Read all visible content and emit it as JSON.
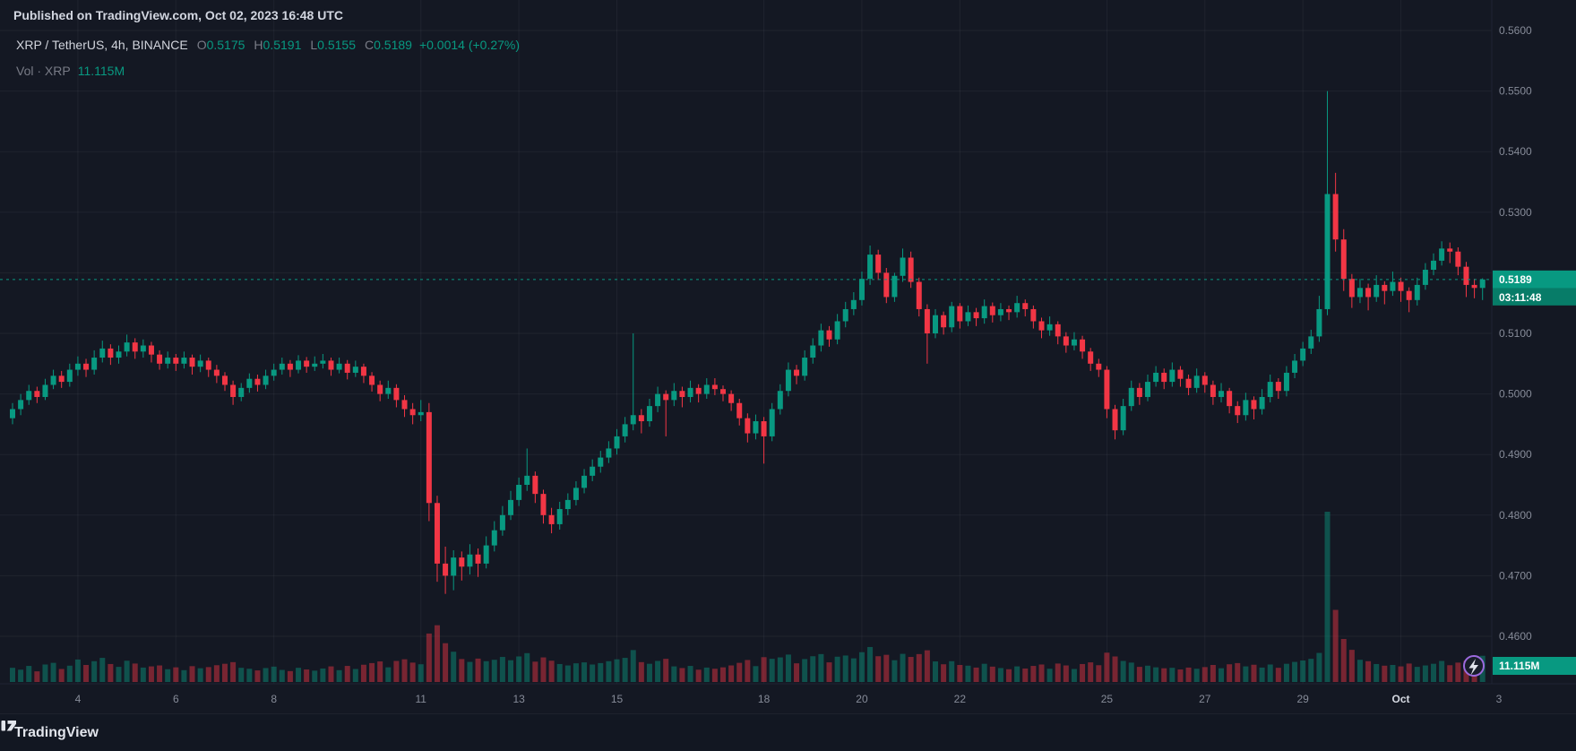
{
  "header": {
    "published_line": "Published on TradingView.com, Oct 02, 2023 16:48 UTC"
  },
  "legend": {
    "symbol_title": "XRP / TetherUS, 4h, BINANCE",
    "ohlc": {
      "o_label": "O",
      "o": "0.5175",
      "h_label": "H",
      "h": "0.5191",
      "l_label": "L",
      "l": "0.5155",
      "c_label": "C",
      "c": "0.5189",
      "change": "+0.0014 (+0.27%)"
    },
    "volume_row": {
      "label": "Vol · XRP",
      "value": "11.115M"
    }
  },
  "footer": {
    "brand": "TradingView"
  },
  "colors": {
    "background": "#141823",
    "up": "#089981",
    "down": "#f23645",
    "volume_up": "rgba(8,153,129,0.45)",
    "volume_down": "rgba(242,54,69,0.45)",
    "accent": "#089981",
    "countdown_bg": "#077c68",
    "axis_text": "#868b98",
    "grid": "rgba(134,139,152,0.10)",
    "separator": "#1f2433",
    "flash_ring": "#9c6ade"
  },
  "chart_data": {
    "type": "candlestick",
    "symbol": "XRP / TetherUS",
    "interval": "4h",
    "exchange": "BINANCE",
    "ohlc": {
      "open": 0.5175,
      "high": 0.5191,
      "low": 0.5155,
      "close": 0.5189,
      "change": "+0.0014",
      "change_pct": "+0.27%"
    },
    "volume": "11.115M",
    "current": {
      "price": "0.5189",
      "price_value": 0.5189,
      "countdown": "03:11:48"
    },
    "price_axis": {
      "min": 0.46,
      "max": 0.56,
      "tick": 0.01,
      "labels": [
        "0.5600",
        "0.5500",
        "0.5400",
        "0.5300",
        "0.5100",
        "0.5000",
        "0.4900",
        "0.4800",
        "0.4700",
        "0.4600"
      ]
    },
    "time_axis": {
      "labels": [
        {
          "label": "4",
          "i": 8
        },
        {
          "label": "6",
          "i": 20
        },
        {
          "label": "8",
          "i": 32
        },
        {
          "label": "11",
          "i": 50
        },
        {
          "label": "13",
          "i": 62
        },
        {
          "label": "15",
          "i": 74
        },
        {
          "label": "18",
          "i": 92
        },
        {
          "label": "20",
          "i": 104
        },
        {
          "label": "22",
          "i": 116
        },
        {
          "label": "25",
          "i": 134
        },
        {
          "label": "27",
          "i": 146
        },
        {
          "label": "29",
          "i": 158
        },
        {
          "label": "Oct",
          "i": 170,
          "emph": true
        },
        {
          "label": "3",
          "i": 182
        }
      ]
    },
    "candles": [
      [
        0.496,
        0.4985,
        0.495,
        0.4975,
        6.0
      ],
      [
        0.4975,
        0.5,
        0.4965,
        0.499,
        5.2
      ],
      [
        0.499,
        0.5015,
        0.4982,
        0.5005,
        6.8
      ],
      [
        0.5005,
        0.5012,
        0.4985,
        0.4995,
        4.5
      ],
      [
        0.4995,
        0.5025,
        0.499,
        0.5015,
        7.4
      ],
      [
        0.5015,
        0.504,
        0.5008,
        0.503,
        8.1
      ],
      [
        0.503,
        0.5038,
        0.501,
        0.502,
        5.5
      ],
      [
        0.502,
        0.505,
        0.5012,
        0.504,
        6.9
      ],
      [
        0.504,
        0.5062,
        0.503,
        0.505,
        9.5
      ],
      [
        0.505,
        0.5058,
        0.5028,
        0.504,
        7.2
      ],
      [
        0.504,
        0.5072,
        0.5032,
        0.506,
        8.8
      ],
      [
        0.506,
        0.5088,
        0.5052,
        0.5075,
        10.2
      ],
      [
        0.5075,
        0.5082,
        0.5048,
        0.506,
        7.6
      ],
      [
        0.506,
        0.508,
        0.505,
        0.507,
        6.4
      ],
      [
        0.507,
        0.5098,
        0.5062,
        0.5085,
        9.0
      ],
      [
        0.5085,
        0.5092,
        0.5058,
        0.507,
        7.8
      ],
      [
        0.507,
        0.509,
        0.506,
        0.508,
        6.1
      ],
      [
        0.508,
        0.5086,
        0.5052,
        0.5065,
        6.6
      ],
      [
        0.5065,
        0.5072,
        0.504,
        0.505,
        7.0
      ],
      [
        0.505,
        0.507,
        0.5042,
        0.506,
        5.4
      ],
      [
        0.506,
        0.5066,
        0.5038,
        0.505,
        6.2
      ],
      [
        0.505,
        0.507,
        0.5042,
        0.506,
        5.0
      ],
      [
        0.506,
        0.5065,
        0.5032,
        0.5045,
        6.7
      ],
      [
        0.5045,
        0.5065,
        0.5036,
        0.5055,
        5.8
      ],
      [
        0.5055,
        0.506,
        0.5028,
        0.504,
        6.3
      ],
      [
        0.504,
        0.5048,
        0.5018,
        0.503,
        7.1
      ],
      [
        0.503,
        0.5036,
        0.5005,
        0.5015,
        7.7
      ],
      [
        0.5015,
        0.5022,
        0.4982,
        0.4995,
        8.4
      ],
      [
        0.4995,
        0.5018,
        0.4988,
        0.501,
        6.0
      ],
      [
        0.501,
        0.5034,
        0.5002,
        0.5025,
        5.6
      ],
      [
        0.5025,
        0.5032,
        0.5004,
        0.5015,
        4.9
      ],
      [
        0.5015,
        0.504,
        0.5008,
        0.503,
        5.9
      ],
      [
        0.503,
        0.505,
        0.5022,
        0.504,
        6.5
      ],
      [
        0.504,
        0.506,
        0.5032,
        0.505,
        5.1
      ],
      [
        0.505,
        0.5056,
        0.5028,
        0.504,
        4.6
      ],
      [
        0.504,
        0.5064,
        0.5034,
        0.5055,
        6.0
      ],
      [
        0.5055,
        0.5061,
        0.5035,
        0.5045,
        5.3
      ],
      [
        0.5045,
        0.5062,
        0.5038,
        0.505,
        4.8
      ],
      [
        0.505,
        0.5066,
        0.5042,
        0.5055,
        5.7
      ],
      [
        0.5055,
        0.506,
        0.503,
        0.504,
        6.6
      ],
      [
        0.504,
        0.506,
        0.5034,
        0.505,
        5.0
      ],
      [
        0.505,
        0.5056,
        0.5024,
        0.5035,
        6.8
      ],
      [
        0.5035,
        0.5055,
        0.5028,
        0.5045,
        5.5
      ],
      [
        0.5045,
        0.505,
        0.5018,
        0.503,
        7.3
      ],
      [
        0.503,
        0.5036,
        0.5004,
        0.5015,
        8.0
      ],
      [
        0.5015,
        0.5022,
        0.4988,
        0.5,
        8.7
      ],
      [
        0.5,
        0.5022,
        0.4992,
        0.501,
        6.2
      ],
      [
        0.501,
        0.5016,
        0.4978,
        0.499,
        8.9
      ],
      [
        0.499,
        0.4998,
        0.4962,
        0.4975,
        9.6
      ],
      [
        0.4975,
        0.4985,
        0.495,
        0.4965,
        8.2
      ],
      [
        0.4965,
        0.499,
        0.4955,
        0.497,
        7.5
      ],
      [
        0.497,
        0.4985,
        0.479,
        0.482,
        20.5
      ],
      [
        0.482,
        0.4832,
        0.469,
        0.472,
        24.0
      ],
      [
        0.472,
        0.4748,
        0.467,
        0.47,
        16.4
      ],
      [
        0.47,
        0.4742,
        0.4676,
        0.473,
        12.8
      ],
      [
        0.473,
        0.474,
        0.4692,
        0.4715,
        9.7
      ],
      [
        0.4715,
        0.4752,
        0.4702,
        0.4735,
        8.5
      ],
      [
        0.4735,
        0.4745,
        0.4698,
        0.472,
        9.9
      ],
      [
        0.472,
        0.4765,
        0.4712,
        0.475,
        8.8
      ],
      [
        0.475,
        0.479,
        0.474,
        0.4775,
        9.4
      ],
      [
        0.4775,
        0.4815,
        0.4766,
        0.48,
        10.6
      ],
      [
        0.48,
        0.484,
        0.4792,
        0.4825,
        9.2
      ],
      [
        0.4825,
        0.4862,
        0.4815,
        0.485,
        10.8
      ],
      [
        0.485,
        0.491,
        0.484,
        0.4865,
        12.2
      ],
      [
        0.4865,
        0.4872,
        0.482,
        0.4835,
        8.6
      ],
      [
        0.4835,
        0.4842,
        0.4786,
        0.48,
        10.4
      ],
      [
        0.48,
        0.4812,
        0.477,
        0.4785,
        9.0
      ],
      [
        0.4785,
        0.4822,
        0.4776,
        0.481,
        7.6
      ],
      [
        0.481,
        0.4836,
        0.48,
        0.4825,
        7.0
      ],
      [
        0.4825,
        0.4856,
        0.4816,
        0.4845,
        7.9
      ],
      [
        0.4845,
        0.4876,
        0.4836,
        0.4865,
        8.3
      ],
      [
        0.4865,
        0.4892,
        0.4856,
        0.488,
        7.4
      ],
      [
        0.488,
        0.4906,
        0.487,
        0.4895,
        8.0
      ],
      [
        0.4895,
        0.4922,
        0.4886,
        0.491,
        8.8
      ],
      [
        0.491,
        0.4942,
        0.49,
        0.493,
        9.6
      ],
      [
        0.493,
        0.4962,
        0.492,
        0.495,
        10.2
      ],
      [
        0.495,
        0.51,
        0.494,
        0.4965,
        13.5
      ],
      [
        0.4965,
        0.4975,
        0.4935,
        0.4955,
        8.4
      ],
      [
        0.4955,
        0.4992,
        0.4946,
        0.498,
        7.7
      ],
      [
        0.498,
        0.5012,
        0.497,
        0.5,
        8.9
      ],
      [
        0.5,
        0.5006,
        0.493,
        0.499,
        9.8
      ],
      [
        0.499,
        0.5018,
        0.498,
        0.5005,
        6.6
      ],
      [
        0.5005,
        0.5012,
        0.4978,
        0.4995,
        5.9
      ],
      [
        0.4995,
        0.5022,
        0.4986,
        0.501,
        6.8
      ],
      [
        0.501,
        0.5016,
        0.4986,
        0.5,
        5.2
      ],
      [
        0.5,
        0.5026,
        0.4992,
        0.5015,
        6.1
      ],
      [
        0.5015,
        0.5026,
        0.4998,
        0.5008,
        5.6
      ],
      [
        0.5008,
        0.5014,
        0.4988,
        0.5,
        6.2
      ],
      [
        0.5,
        0.5006,
        0.4972,
        0.4985,
        7.0
      ],
      [
        0.4985,
        0.4992,
        0.4948,
        0.496,
        8.1
      ],
      [
        0.496,
        0.4968,
        0.492,
        0.4935,
        9.3
      ],
      [
        0.4935,
        0.4966,
        0.4925,
        0.4955,
        6.7
      ],
      [
        0.4955,
        0.4962,
        0.4885,
        0.493,
        10.5
      ],
      [
        0.493,
        0.4985,
        0.4922,
        0.4975,
        9.8
      ],
      [
        0.4975,
        0.5016,
        0.4966,
        0.5005,
        10.4
      ],
      [
        0.5005,
        0.5052,
        0.4996,
        0.504,
        11.6
      ],
      [
        0.504,
        0.5048,
        0.5016,
        0.503,
        7.9
      ],
      [
        0.503,
        0.5072,
        0.5022,
        0.506,
        9.7
      ],
      [
        0.506,
        0.5092,
        0.505,
        0.508,
        10.9
      ],
      [
        0.508,
        0.5116,
        0.507,
        0.5105,
        11.8
      ],
      [
        0.5105,
        0.5112,
        0.5078,
        0.509,
        8.3
      ],
      [
        0.509,
        0.5132,
        0.5082,
        0.512,
        10.7
      ],
      [
        0.512,
        0.5152,
        0.511,
        0.514,
        11.2
      ],
      [
        0.514,
        0.5168,
        0.513,
        0.5155,
        10.0
      ],
      [
        0.5155,
        0.5202,
        0.5146,
        0.519,
        12.6
      ],
      [
        0.519,
        0.5245,
        0.518,
        0.523,
        14.8
      ],
      [
        0.523,
        0.5238,
        0.5188,
        0.52,
        10.9
      ],
      [
        0.52,
        0.5208,
        0.515,
        0.516,
        11.5
      ],
      [
        0.516,
        0.52,
        0.5152,
        0.5195,
        9.2
      ],
      [
        0.5195,
        0.524,
        0.5185,
        0.5225,
        11.9
      ],
      [
        0.5225,
        0.5235,
        0.5175,
        0.5185,
        10.6
      ],
      [
        0.5185,
        0.5192,
        0.5128,
        0.514,
        11.8
      ],
      [
        0.514,
        0.5148,
        0.505,
        0.51,
        13.4
      ],
      [
        0.51,
        0.514,
        0.5092,
        0.513,
        8.7
      ],
      [
        0.513,
        0.5136,
        0.5098,
        0.511,
        7.5
      ],
      [
        0.511,
        0.5152,
        0.5102,
        0.5145,
        8.8
      ],
      [
        0.5145,
        0.515,
        0.5108,
        0.512,
        7.2
      ],
      [
        0.512,
        0.5146,
        0.5112,
        0.5135,
        6.9
      ],
      [
        0.5135,
        0.5142,
        0.5112,
        0.5125,
        6.1
      ],
      [
        0.5125,
        0.5156,
        0.5116,
        0.5145,
        7.7
      ],
      [
        0.5145,
        0.5151,
        0.5118,
        0.513,
        6.5
      ],
      [
        0.513,
        0.515,
        0.512,
        0.514,
        5.9
      ],
      [
        0.514,
        0.5146,
        0.5122,
        0.5135,
        5.4
      ],
      [
        0.5135,
        0.5162,
        0.5126,
        0.515,
        6.6
      ],
      [
        0.515,
        0.5156,
        0.5128,
        0.514,
        5.7
      ],
      [
        0.514,
        0.5146,
        0.5108,
        0.512,
        6.8
      ],
      [
        0.512,
        0.5126,
        0.5092,
        0.5105,
        7.4
      ],
      [
        0.5105,
        0.5128,
        0.5096,
        0.5115,
        5.6
      ],
      [
        0.5115,
        0.512,
        0.5082,
        0.5095,
        7.8
      ],
      [
        0.5095,
        0.5102,
        0.5068,
        0.508,
        7.0
      ],
      [
        0.508,
        0.5102,
        0.5072,
        0.509,
        5.5
      ],
      [
        0.509,
        0.5096,
        0.5058,
        0.507,
        7.6
      ],
      [
        0.507,
        0.5076,
        0.5038,
        0.505,
        8.3
      ],
      [
        0.505,
        0.5058,
        0.5028,
        0.504,
        7.1
      ],
      [
        0.504,
        0.5046,
        0.496,
        0.4975,
        12.4
      ],
      [
        0.4975,
        0.4982,
        0.4925,
        0.494,
        10.8
      ],
      [
        0.494,
        0.4992,
        0.4932,
        0.498,
        8.9
      ],
      [
        0.498,
        0.5022,
        0.4972,
        0.501,
        8.2
      ],
      [
        0.501,
        0.5018,
        0.4982,
        0.4995,
        6.4
      ],
      [
        0.4995,
        0.5032,
        0.4988,
        0.502,
        6.9
      ],
      [
        0.502,
        0.5046,
        0.5012,
        0.5035,
        6.2
      ],
      [
        0.5035,
        0.5042,
        0.5008,
        0.502,
        5.8
      ],
      [
        0.502,
        0.5052,
        0.5012,
        0.504,
        6.0
      ],
      [
        0.504,
        0.5046,
        0.5012,
        0.5025,
        5.3
      ],
      [
        0.5025,
        0.5032,
        0.4998,
        0.501,
        6.1
      ],
      [
        0.501,
        0.5042,
        0.5002,
        0.503,
        5.6
      ],
      [
        0.503,
        0.5036,
        0.5002,
        0.5015,
        6.3
      ],
      [
        0.5015,
        0.5022,
        0.4982,
        0.4995,
        7.2
      ],
      [
        0.4995,
        0.5018,
        0.4986,
        0.5005,
        5.8
      ],
      [
        0.5005,
        0.501,
        0.4968,
        0.498,
        7.5
      ],
      [
        0.498,
        0.4988,
        0.4952,
        0.4965,
        8.0
      ],
      [
        0.4965,
        0.5002,
        0.4956,
        0.499,
        6.6
      ],
      [
        0.499,
        0.4996,
        0.4958,
        0.4975,
        7.3
      ],
      [
        0.4975,
        0.5008,
        0.4966,
        0.4995,
        6.1
      ],
      [
        0.4995,
        0.5032,
        0.4986,
        0.502,
        7.4
      ],
      [
        0.502,
        0.5026,
        0.4992,
        0.5005,
        6.0
      ],
      [
        0.5005,
        0.5046,
        0.4996,
        0.5035,
        7.7
      ],
      [
        0.5035,
        0.5066,
        0.5026,
        0.5055,
        8.5
      ],
      [
        0.5055,
        0.5086,
        0.5046,
        0.5075,
        9.1
      ],
      [
        0.5075,
        0.5106,
        0.5066,
        0.5095,
        9.8
      ],
      [
        0.5095,
        0.5162,
        0.5086,
        0.514,
        12.3
      ],
      [
        0.514,
        0.55,
        0.513,
        0.533,
        72.0
      ],
      [
        0.533,
        0.5365,
        0.5235,
        0.5255,
        30.5
      ],
      [
        0.5255,
        0.5272,
        0.517,
        0.519,
        18.2
      ],
      [
        0.519,
        0.5198,
        0.5142,
        0.516,
        13.6
      ],
      [
        0.516,
        0.519,
        0.515,
        0.5175,
        9.4
      ],
      [
        0.5175,
        0.5182,
        0.5138,
        0.516,
        8.8
      ],
      [
        0.516,
        0.5196,
        0.5152,
        0.518,
        7.6
      ],
      [
        0.518,
        0.5186,
        0.5148,
        0.517,
        6.9
      ],
      [
        0.517,
        0.5202,
        0.5162,
        0.5185,
        7.2
      ],
      [
        0.5185,
        0.5192,
        0.5152,
        0.517,
        6.6
      ],
      [
        0.517,
        0.5176,
        0.5135,
        0.5155,
        7.8
      ],
      [
        0.5155,
        0.5192,
        0.5146,
        0.518,
        6.4
      ],
      [
        0.518,
        0.5216,
        0.5172,
        0.5205,
        7.0
      ],
      [
        0.5205,
        0.5232,
        0.5196,
        0.522,
        7.7
      ],
      [
        0.522,
        0.5252,
        0.5212,
        0.524,
        8.9
      ],
      [
        0.524,
        0.525,
        0.5216,
        0.5235,
        7.1
      ],
      [
        0.5235,
        0.5242,
        0.5196,
        0.521,
        8.2
      ],
      [
        0.521,
        0.5218,
        0.516,
        0.518,
        9.0
      ],
      [
        0.518,
        0.519,
        0.5158,
        0.5175,
        7.4
      ],
      [
        0.5175,
        0.5191,
        0.5155,
        0.5189,
        11.1
      ]
    ]
  }
}
